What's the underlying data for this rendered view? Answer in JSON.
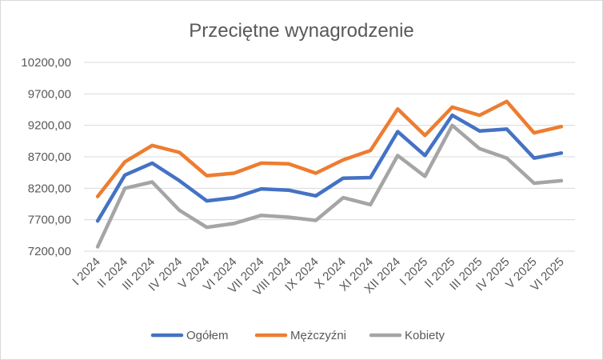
{
  "chart_data": {
    "type": "line",
    "title": "Przeciętne wynagrodzenie",
    "xlabel": "",
    "ylabel": "",
    "categories": [
      "I 2024",
      "II 2024",
      "III 2024",
      "IV 2024",
      "V 2024",
      "VI 2024",
      "VII 2024",
      "VIII 2024",
      "IX 2024",
      "X 2024",
      "XI 2024",
      "XII 2024",
      "I 2025",
      "II 2025",
      "III 2025",
      "IV 2025",
      "V 2025",
      "VI 2025"
    ],
    "yticks": [
      "7200,00",
      "7700,00",
      "8200,00",
      "8700,00",
      "9200,00",
      "9700,00",
      "10200,00"
    ],
    "ylim": [
      7200,
      10200
    ],
    "grid": true,
    "legend": "bottom",
    "series": [
      {
        "name": "Ogółem",
        "color": "#4472c4",
        "values": [
          7680,
          8410,
          8600,
          8320,
          8000,
          8050,
          8190,
          8170,
          8080,
          8360,
          8370,
          9100,
          8720,
          9360,
          9110,
          9140,
          8680,
          8760
        ]
      },
      {
        "name": "Mężczyźni",
        "color": "#ed7d31",
        "values": [
          8070,
          8620,
          8880,
          8770,
          8400,
          8440,
          8600,
          8590,
          8440,
          8650,
          8800,
          9460,
          9040,
          9490,
          9360,
          9580,
          9080,
          9180
        ]
      },
      {
        "name": "Kobiety",
        "color": "#a5a5a5",
        "values": [
          7270,
          8200,
          8300,
          7850,
          7580,
          7640,
          7770,
          7740,
          7690,
          8050,
          7940,
          8720,
          8390,
          9200,
          8830,
          8680,
          8280,
          8320
        ]
      }
    ]
  }
}
